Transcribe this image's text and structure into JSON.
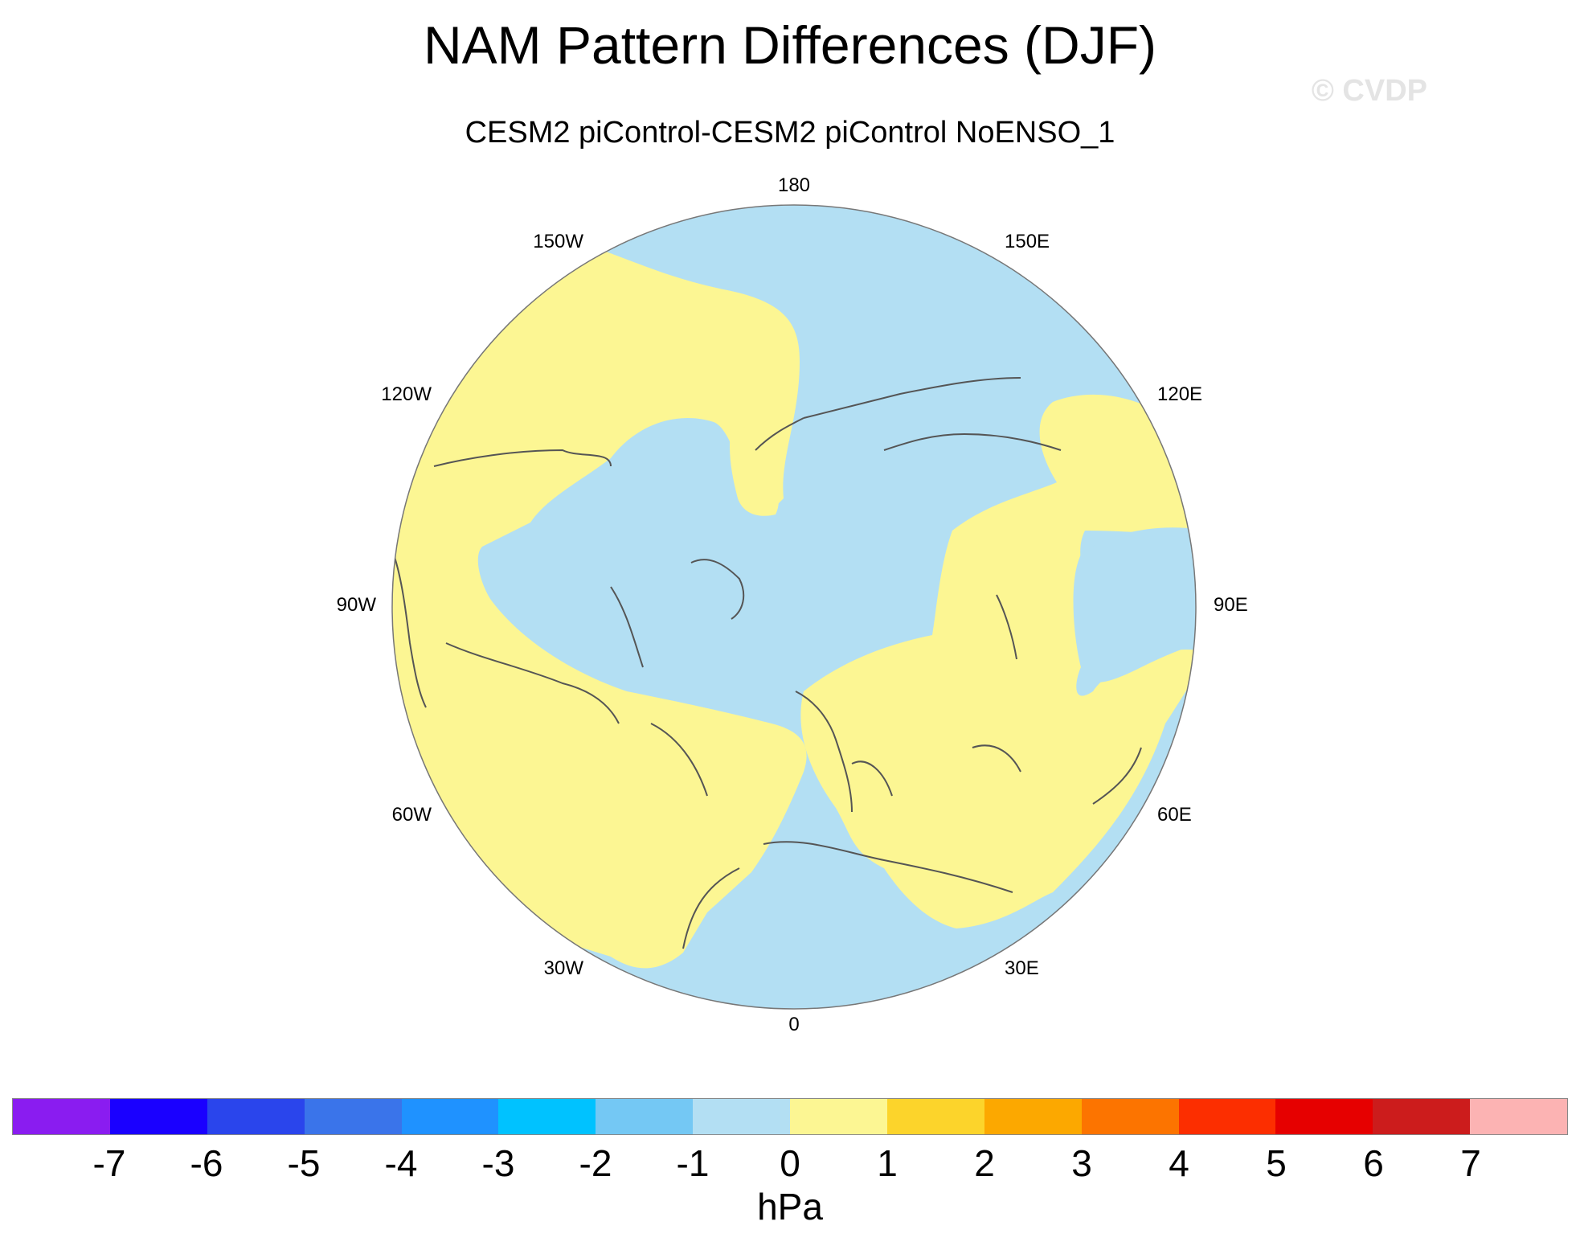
{
  "title": "NAM Pattern Differences (DJF)",
  "subtitle": "CESM2 piControl-CESM2 piControl NoENSO_1",
  "watermark": "© CVDP",
  "longitude_labels": [
    "180",
    "150E",
    "120E",
    "90E",
    "60E",
    "30E",
    "0",
    "30W",
    "60W",
    "90W",
    "120W",
    "150W"
  ],
  "colorbar": {
    "colors": [
      "#8a1cf0",
      "#1a00ff",
      "#2a45ec",
      "#3a74ea",
      "#1f92ff",
      "#00c2ff",
      "#74c8f4",
      "#b3dff3",
      "#fcf693",
      "#fcd42b",
      "#fca800",
      "#fc7400",
      "#fc2e00",
      "#e60000",
      "#cc1c1c",
      "#fcb3b3"
    ],
    "labels": [
      "-7",
      "-6",
      "-5",
      "-4",
      "-3",
      "-2",
      "-1",
      "0",
      "1",
      "2",
      "3",
      "4",
      "5",
      "6",
      "7"
    ],
    "units": "hPa"
  },
  "map": {
    "projection": "polar stereographic (Northern Hemisphere)",
    "field_colors": {
      "negative_bin": "#b3dff3",
      "positive_bin": "#fcf693"
    },
    "coastline_color": "#555555"
  }
}
